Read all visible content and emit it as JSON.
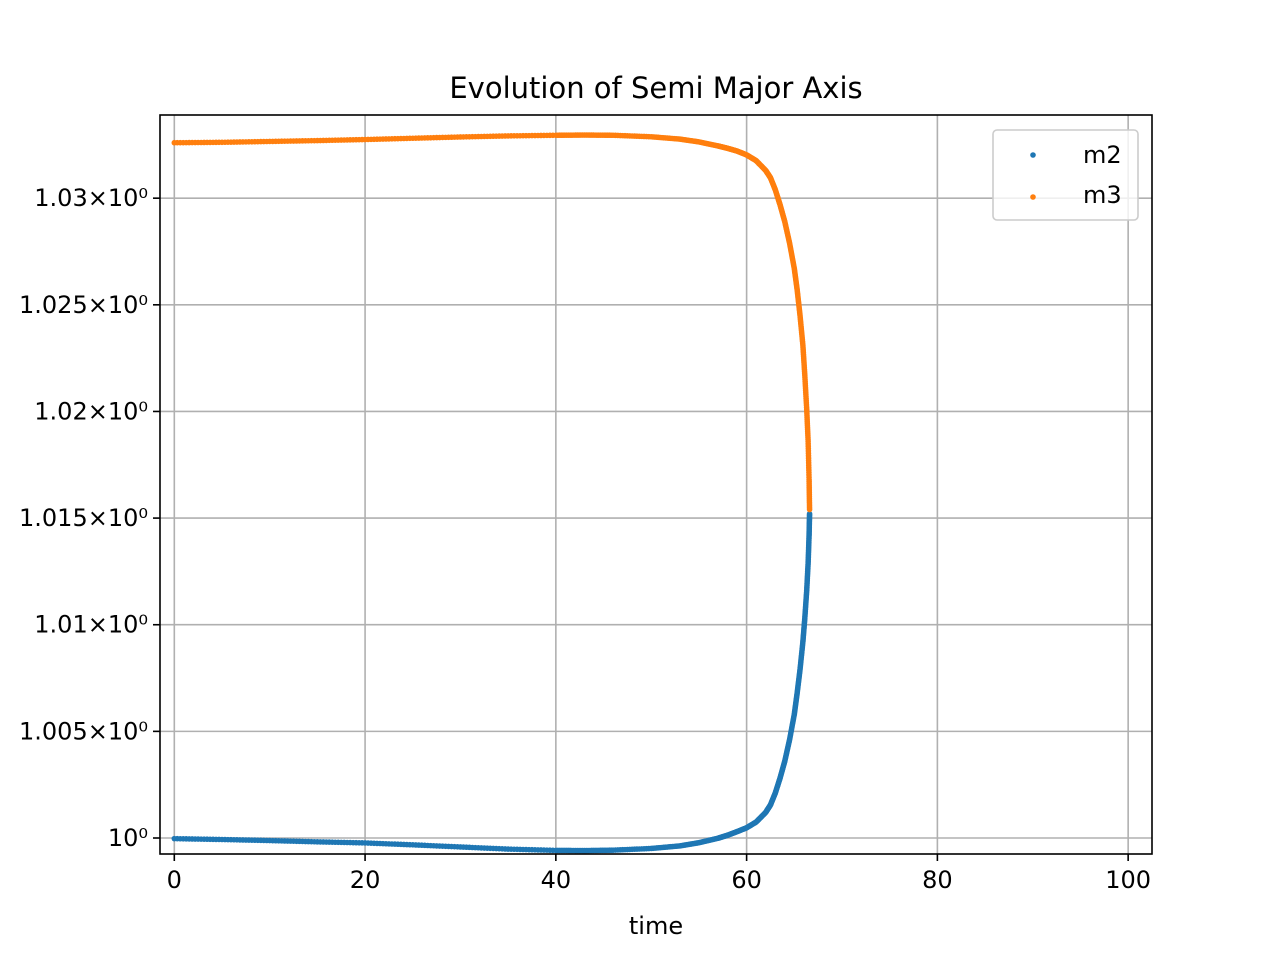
{
  "chart_data": {
    "type": "scatter",
    "title": "Evolution of Semi Major Axis",
    "xlabel": "time",
    "ylabel": "",
    "xlim": [
      -1.5,
      102.5
    ],
    "ylim": [
      0.99925,
      1.0339
    ],
    "grid": true,
    "legend_position": "top-right",
    "x_ticks": [
      {
        "value": 0,
        "label": "0"
      },
      {
        "value": 20,
        "label": "20"
      },
      {
        "value": 40,
        "label": "40"
      },
      {
        "value": 60,
        "label": "60"
      },
      {
        "value": 80,
        "label": "80"
      },
      {
        "value": 100,
        "label": "100"
      }
    ],
    "y_ticks": [
      {
        "value": 1.0,
        "label": "10⁰"
      },
      {
        "value": 1.005,
        "label": "1.005×10⁰"
      },
      {
        "value": 1.01,
        "label": "1.01×10⁰"
      },
      {
        "value": 1.015,
        "label": "1.015×10⁰"
      },
      {
        "value": 1.02,
        "label": "1.02×10⁰"
      },
      {
        "value": 1.025,
        "label": "1.025×10⁰"
      },
      {
        "value": 1.03,
        "label": "1.03×10⁰"
      }
    ],
    "series": [
      {
        "name": "m2",
        "color": "#1f77b4",
        "x": [
          0,
          5,
          10,
          15,
          20,
          25,
          30,
          35,
          40,
          43,
          46,
          50,
          53,
          55,
          57,
          58,
          59,
          60,
          61,
          62,
          62.5,
          63,
          63.5,
          64,
          64.5,
          65,
          65.3,
          65.6,
          65.9,
          66.1,
          66.3,
          66.45,
          66.55,
          66.6
        ],
        "y": [
          0.99997,
          0.99993,
          0.99988,
          0.99982,
          0.99977,
          0.99968,
          0.99958,
          0.99948,
          0.99942,
          0.99941,
          0.99943,
          0.99951,
          0.99963,
          0.99978,
          0.99999,
          1.00013,
          1.0003,
          1.00048,
          1.00075,
          1.0012,
          1.00155,
          1.0021,
          1.0028,
          1.0036,
          1.0046,
          1.0058,
          1.0068,
          1.0079,
          1.0092,
          1.0103,
          1.0116,
          1.0129,
          1.0142,
          1.0152
        ]
      },
      {
        "name": "m3",
        "color": "#ff7f0e",
        "x": [
          0,
          5,
          10,
          15,
          20,
          25,
          30,
          35,
          40,
          43,
          46,
          50,
          53,
          55,
          57,
          58,
          59,
          60,
          61,
          62,
          62.5,
          63,
          63.5,
          64,
          64.5,
          65,
          65.3,
          65.6,
          65.9,
          66.1,
          66.3,
          66.45,
          66.55,
          66.6
        ],
        "y": [
          1.0326,
          1.03262,
          1.03266,
          1.0327,
          1.03275,
          1.03281,
          1.03287,
          1.03292,
          1.03295,
          1.03296,
          1.03295,
          1.03288,
          1.03277,
          1.03264,
          1.03245,
          1.03234,
          1.03221,
          1.03203,
          1.03176,
          1.0313,
          1.03096,
          1.0304,
          1.0297,
          1.0289,
          1.0279,
          1.0267,
          1.0257,
          1.0245,
          1.0231,
          1.0217,
          1.0201,
          1.0186,
          1.0168,
          1.0154
        ]
      }
    ]
  }
}
